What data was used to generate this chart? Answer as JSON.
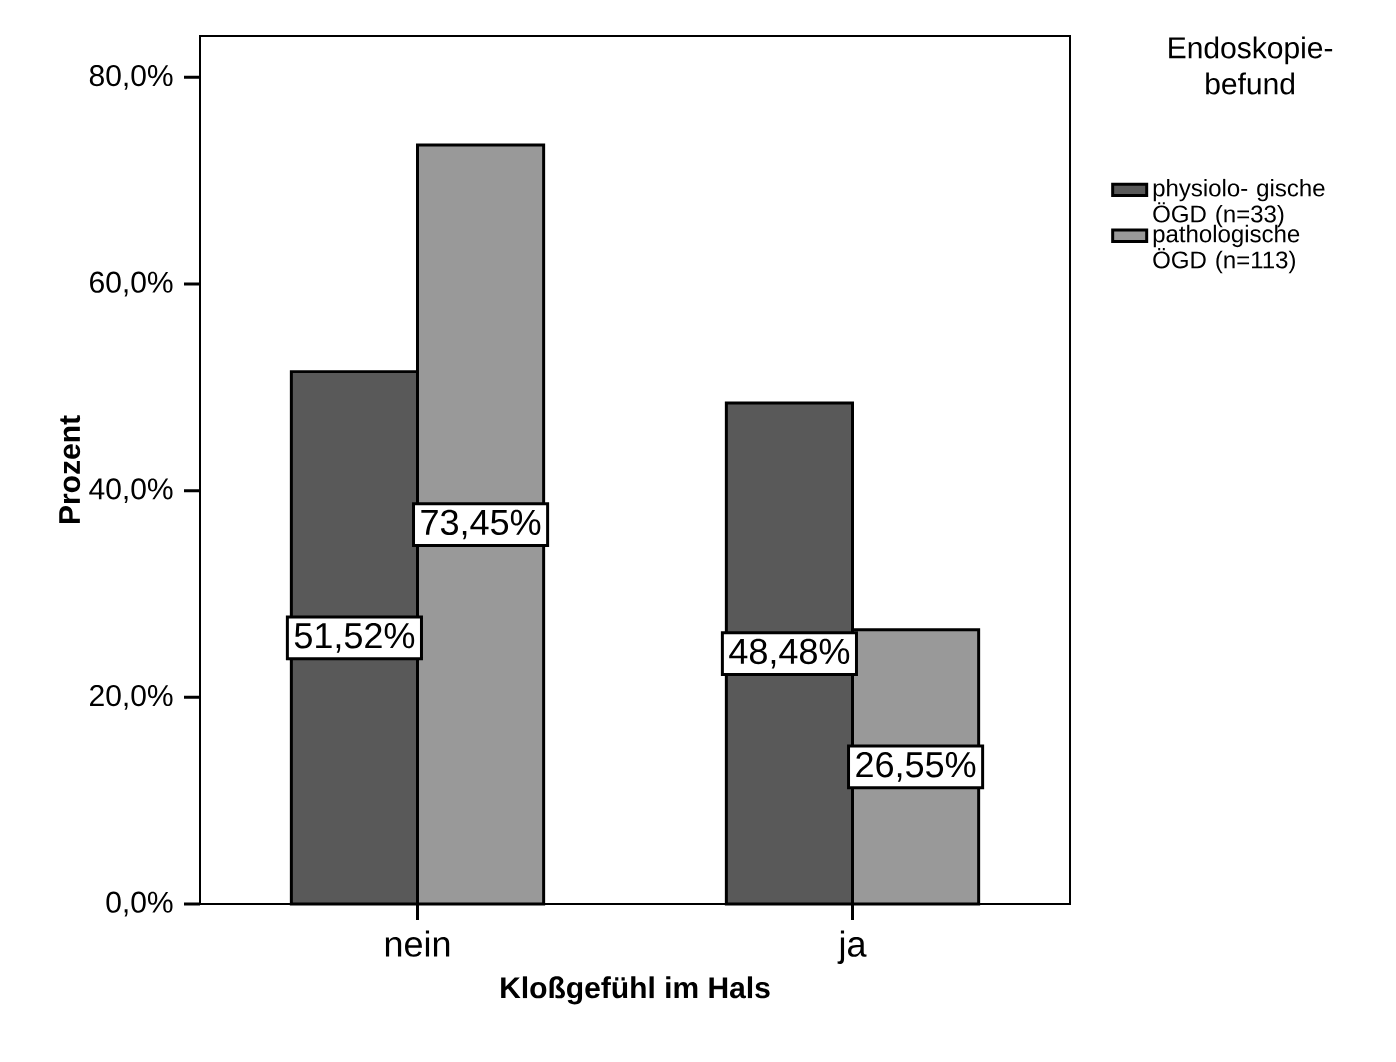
{
  "chart_data": {
    "type": "bar",
    "xlabel": "Kloßgefühl im  Hals",
    "ylabel": "Prozent",
    "legend_title": "Endoskopie- befund",
    "categories": [
      "nein",
      "ja"
    ],
    "series": [
      {
        "name": "physiolo- gische ÖGD (n=33)",
        "color": "#595959",
        "values": [
          51.52,
          48.48
        ],
        "value_labels": [
          "51,52%",
          "48,48%"
        ]
      },
      {
        "name": "pathologische ÖGD (n=113)",
        "color": "#999999",
        "values": [
          73.45,
          26.55
        ],
        "value_labels": [
          "73,45%",
          "26,55%"
        ]
      }
    ],
    "ylim": [
      0,
      84
    ],
    "yticks": [
      {
        "value": 0,
        "label": "0,0%"
      },
      {
        "value": 20,
        "label": "20,0%"
      },
      {
        "value": 40,
        "label": "40,0%"
      },
      {
        "value": 60,
        "label": "60,0%"
      },
      {
        "value": 80,
        "label": "80,0%"
      }
    ],
    "legend": "right",
    "grid": false
  }
}
